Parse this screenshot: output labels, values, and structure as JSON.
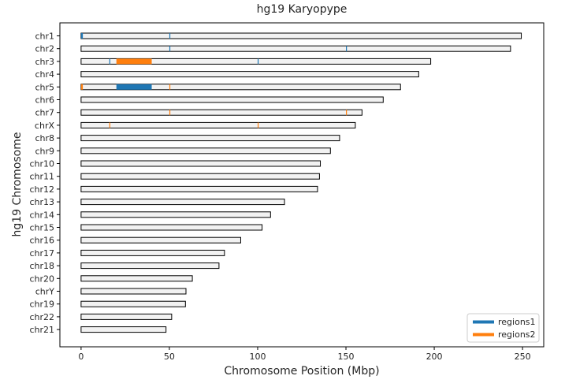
{
  "chart_data": {
    "type": "bar",
    "title": "hg19 Karyopype",
    "xlabel": "Chromosome Position (Mbp)",
    "ylabel": "hg19 Chromosome",
    "xlim": [
      -12,
      262
    ],
    "xticks": [
      0,
      50,
      100,
      150,
      200,
      250
    ],
    "grid": false,
    "legend_position": "bottom-right",
    "colors": {
      "regions1": "#1f77b4",
      "regions2": "#ff7f0e",
      "chrom_fill": "#f2f2f2",
      "chrom_edge": "#000000"
    },
    "chromosomes": [
      {
        "name": "chr1",
        "length": 249.3
      },
      {
        "name": "chr2",
        "length": 243.2
      },
      {
        "name": "chr3",
        "length": 198.0
      },
      {
        "name": "chr4",
        "length": 191.2
      },
      {
        "name": "chr5",
        "length": 180.9
      },
      {
        "name": "chr6",
        "length": 171.1
      },
      {
        "name": "chr7",
        "length": 159.1
      },
      {
        "name": "chrX",
        "length": 155.3
      },
      {
        "name": "chr8",
        "length": 146.4
      },
      {
        "name": "chr9",
        "length": 141.2
      },
      {
        "name": "chr10",
        "length": 135.5
      },
      {
        "name": "chr11",
        "length": 135.0
      },
      {
        "name": "chr12",
        "length": 133.9
      },
      {
        "name": "chr13",
        "length": 115.2
      },
      {
        "name": "chr14",
        "length": 107.3
      },
      {
        "name": "chr15",
        "length": 102.5
      },
      {
        "name": "chr16",
        "length": 90.4
      },
      {
        "name": "chr17",
        "length": 81.2
      },
      {
        "name": "chr18",
        "length": 78.1
      },
      {
        "name": "chr20",
        "length": 63.0
      },
      {
        "name": "chrY",
        "length": 59.4
      },
      {
        "name": "chr19",
        "length": 59.1
      },
      {
        "name": "chr22",
        "length": 51.3
      },
      {
        "name": "chr21",
        "length": 48.1
      }
    ],
    "series": [
      {
        "name": "regions1",
        "regions": [
          {
            "chrom": "chr1",
            "start": 0,
            "end": 1
          },
          {
            "chrom": "chr1",
            "start": 50,
            "end": 50.3
          },
          {
            "chrom": "chr2",
            "start": 50,
            "end": 50.3
          },
          {
            "chrom": "chr2",
            "start": 150,
            "end": 150.3
          },
          {
            "chrom": "chr3",
            "start": 16,
            "end": 16.3
          },
          {
            "chrom": "chr3",
            "start": 100,
            "end": 100.3
          },
          {
            "chrom": "chr5",
            "start": 20,
            "end": 40
          }
        ]
      },
      {
        "name": "regions2",
        "regions": [
          {
            "chrom": "chr3",
            "start": 20,
            "end": 40
          },
          {
            "chrom": "chr5",
            "start": 0,
            "end": 1
          },
          {
            "chrom": "chr5",
            "start": 50,
            "end": 50.3
          },
          {
            "chrom": "chr7",
            "start": 50,
            "end": 50.3
          },
          {
            "chrom": "chr7",
            "start": 150,
            "end": 150.3
          },
          {
            "chrom": "chrX",
            "start": 16,
            "end": 16.3
          },
          {
            "chrom": "chrX",
            "start": 100,
            "end": 100.3
          }
        ]
      }
    ]
  }
}
